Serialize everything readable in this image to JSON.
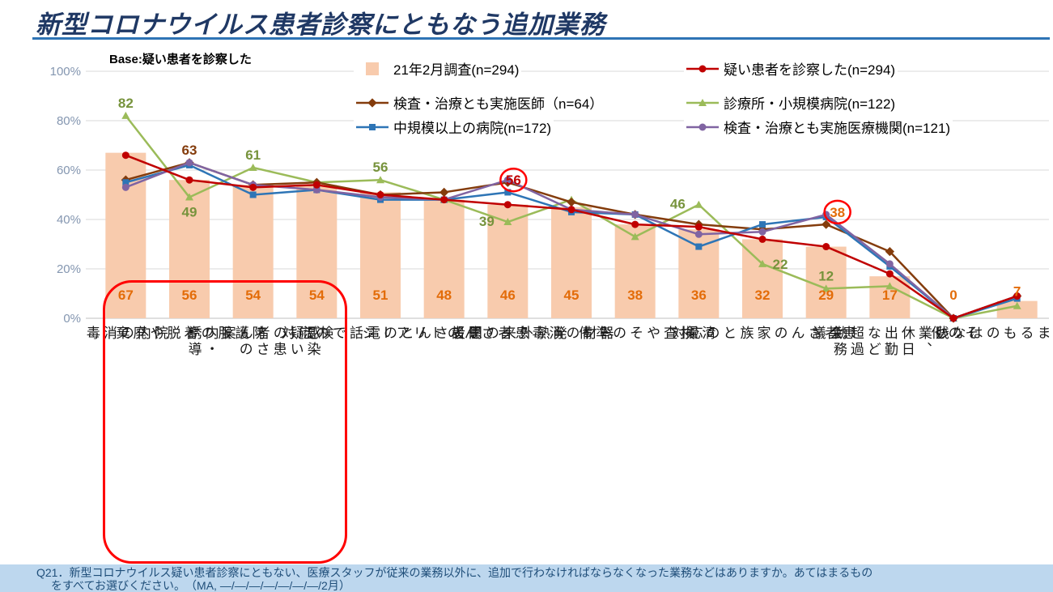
{
  "title": "新型コロナウイルス患者診察にともなう追加業務",
  "base_note": "Base:疑い患者を診察した",
  "footer": {
    "line1": "Q21．新型コロナウイルス疑い患者診察にともない、医療スタッフが従来の業務以外に、追加で行わなければならなくなった業務などはありますか。あてはまるもの",
    "line2": "をすべてお選びください。　（MA, ―/―/―/―/―/―/―/2月）"
  },
  "colors": {
    "title": "#1F3864",
    "title_rule": "#2E74B5",
    "footer_bg": "#BDD7EE",
    "footer_text": "#1F4E79",
    "highlight_box": "#FF0000",
    "gridline": "#D9D9D9",
    "y_tick": "#8496B0"
  },
  "legend": {
    "items": [
      {
        "label": "21年2月調査(n=294)",
        "type": "bar",
        "marker": "swatch",
        "color": "#F8CBAD"
      },
      {
        "label": "疑い患者を診察した(n=294)",
        "type": "line",
        "marker": "circle",
        "color": "#C00000"
      },
      {
        "label": "検査・治療とも実施医師（n=64）",
        "type": "line",
        "marker": "diamond",
        "color": "#843C0C"
      },
      {
        "label": "診療所・小規模病院(n=122)",
        "type": "line",
        "marker": "triangle",
        "color": "#9BBB59"
      },
      {
        "label": "中規模以上の病院(n=172)",
        "type": "line",
        "marker": "square",
        "color": "#2E75B6"
      },
      {
        "label": "検査・治療とも実施医療機関(n=121)",
        "type": "line",
        "marker": "circle",
        "color": "#8064A2"
      }
    ]
  },
  "chart_data": {
    "type": "bar+line",
    "ylim": [
      0,
      100
    ],
    "yticks": [
      "0%",
      "20%",
      "40%",
      "60%",
      "80%",
      "100%"
    ],
    "grid": true,
    "categories": [
      "院内の消毒",
      "防護服の着脱や廃棄",
      "感染疑いの患者さんの案内・誘導",
      "検温",
      "患者さんとの電話での応対",
      "患者さんのトリアージ",
      "発熱外来の開設",
      "器材の消毒",
      "検査やその準備",
      "清掃",
      "患者さんの家族との応対",
      "会議",
      "残業、休日出勤など超過勤務",
      "その他",
      "あてはまるものはない"
    ],
    "bar_series": {
      "name": "21年2月調査(n=294)",
      "color": "#F8CBAD",
      "label_color": "#E36C09",
      "values": [
        67,
        56,
        54,
        54,
        51,
        48,
        46,
        45,
        38,
        36,
        32,
        29,
        17,
        0,
        7
      ]
    },
    "line_series": [
      {
        "name": "疑い患者を診察した(n=294)",
        "color": "#C00000",
        "marker": "circle",
        "values": [
          66,
          56,
          53,
          54,
          50,
          48,
          46,
          44,
          38,
          37,
          32,
          29,
          18,
          0,
          9
        ]
      },
      {
        "name": "検査・治療とも実施医師（n=64）",
        "color": "#843C0C",
        "marker": "diamond",
        "values": [
          56,
          63,
          54,
          55,
          50,
          51,
          55,
          47,
          42,
          38,
          36,
          38,
          27,
          0,
          9
        ]
      },
      {
        "name": "診療所・小規模病院(n=122)",
        "color": "#9BBB59",
        "label_color": "#77933C",
        "marker": "triangle",
        "values": [
          82,
          49,
          61,
          55,
          56,
          48,
          39,
          48,
          33,
          46,
          22,
          12,
          13,
          0,
          5
        ]
      },
      {
        "name": "中規模以上の病院(n=172)",
        "color": "#2E75B6",
        "marker": "square",
        "values": [
          55,
          62,
          50,
          52,
          48,
          48,
          51,
          43,
          42,
          29,
          38,
          41,
          21,
          0,
          8
        ]
      },
      {
        "name": "検査・治療とも実施医療機関(n=121)",
        "color": "#8064A2",
        "marker": "circle",
        "values": [
          53,
          63,
          54,
          52,
          49,
          48,
          56,
          44,
          42,
          34,
          35,
          42,
          22,
          0,
          9
        ]
      }
    ],
    "point_labels": [
      {
        "series": 2,
        "cat": 0,
        "text": "82",
        "placement": "above"
      },
      {
        "series": 1,
        "cat": 1,
        "text": "63",
        "placement": "above"
      },
      {
        "series": 2,
        "cat": 1,
        "text": "49",
        "placement": "below"
      },
      {
        "series": 2,
        "cat": 2,
        "text": "61",
        "placement": "above"
      },
      {
        "series": 2,
        "cat": 4,
        "text": "56",
        "placement": "above"
      },
      {
        "series": 2,
        "cat": 6,
        "text": "39",
        "placement": "left"
      },
      {
        "series": 2,
        "cat": 9,
        "text": "46",
        "placement": "left"
      },
      {
        "series": 2,
        "cat": 10,
        "text": "22",
        "placement": "right"
      },
      {
        "series": 2,
        "cat": 11,
        "text": "12",
        "placement": "above"
      }
    ],
    "circled_labels": [
      {
        "cat": 6,
        "val": 56,
        "dx": 7,
        "text": "56",
        "color": "#C00000"
      },
      {
        "cat": 11,
        "val": 43,
        "dx": 14,
        "text": "38",
        "color": "#E36C09"
      }
    ],
    "highlight_box": {
      "from_cat": 0,
      "to_cat": 3
    }
  }
}
